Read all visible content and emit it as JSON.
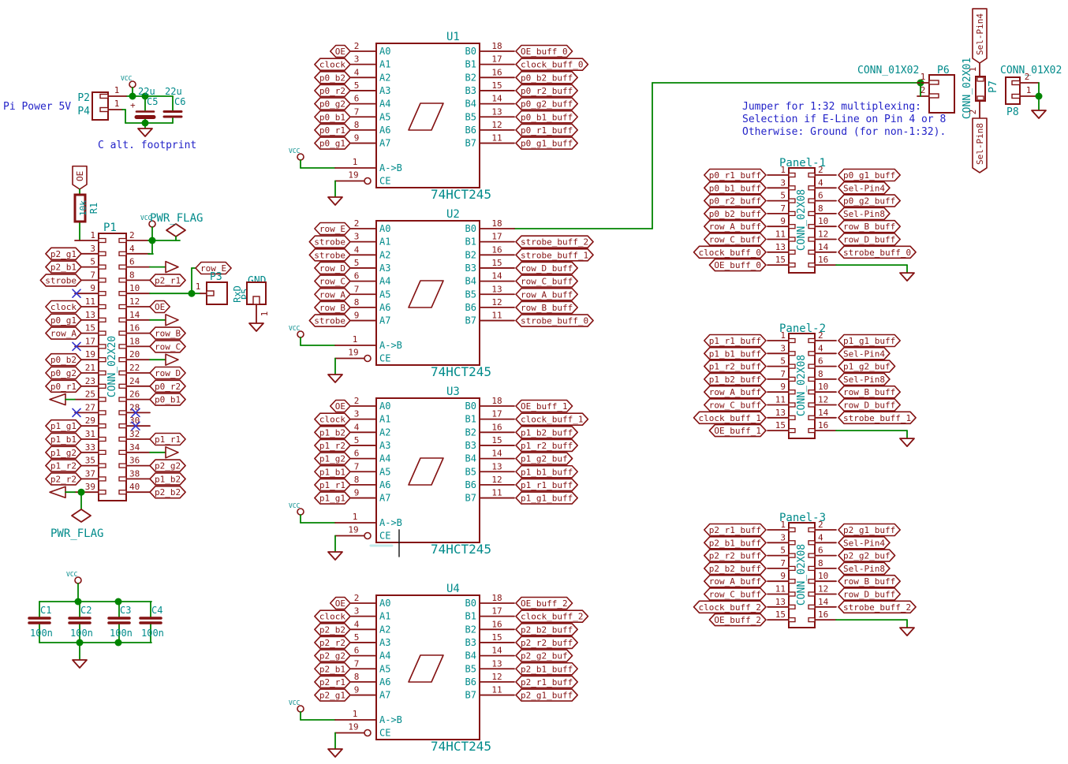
{
  "notes": {
    "pi_power": "Pi Power 5V",
    "c_alt": "C alt. footprint",
    "jumper": [
      "Jumper for 1:32 multiplexing:",
      "Selection if E-Line on Pin 4 or 8",
      "Otherwise: Ground (for non-1:32)."
    ]
  },
  "power": {
    "vcc": "VCC",
    "pwr_flag": "PWR_FLAG"
  },
  "pi_conn": {
    "p2": "P2",
    "p4": "P4",
    "pin": "1",
    "c5_ref": "C5",
    "c5_val": "22u",
    "c6_ref": "C6",
    "c6_val": "22u",
    "plus": "+"
  },
  "r1": {
    "ref": "R1",
    "value": "10k"
  },
  "oe_pullup_label": "OE",
  "p1": {
    "ref": "P1",
    "value": "CONN_02X20",
    "rows": [
      {
        "ln": "1",
        "lt": "wire",
        "rn": "2",
        "rt": "wire"
      },
      {
        "ln": "3",
        "ll": "p2_g1",
        "rn": "4",
        "rt": "wire"
      },
      {
        "ln": "5",
        "ll": "p2_b1",
        "rn": "6",
        "rt": "arrow"
      },
      {
        "ln": "7",
        "ll": "strobe",
        "rn": "8",
        "rl": "p2_r1"
      },
      {
        "ln": "9",
        "lt": "nc",
        "rn": "10",
        "rt": "wire"
      },
      {
        "ln": "11",
        "ll": "clock",
        "rn": "12",
        "rl": "OE"
      },
      {
        "ln": "13",
        "ll": "p0_g1",
        "rn": "14",
        "rt": "arrow"
      },
      {
        "ln": "15",
        "ll": "row_A",
        "rn": "16",
        "rl": "row_B"
      },
      {
        "ln": "17",
        "lt": "nc",
        "rn": "18",
        "rl": "row_C"
      },
      {
        "ln": "19",
        "ll": "p0_b2",
        "rn": "20",
        "rt": "arrow"
      },
      {
        "ln": "21",
        "ll": "p0_g2",
        "rn": "22",
        "rl": "row_D"
      },
      {
        "ln": "23",
        "ll": "p0_r1",
        "rn": "24",
        "rl": "p0_r2"
      },
      {
        "ln": "25",
        "lt": "arrow",
        "rn": "26",
        "rl": "p0_b1"
      },
      {
        "ln": "27",
        "lt": "nc",
        "rn": "28",
        "rt": "nc"
      },
      {
        "ln": "29",
        "ll": "p1_g1",
        "rn": "30",
        "rt": "nc"
      },
      {
        "ln": "31",
        "ll": "p1_b1",
        "rn": "32",
        "rl": "p1_r1"
      },
      {
        "ln": "33",
        "ll": "p1_g2",
        "rn": "34",
        "rt": "arrow"
      },
      {
        "ln": "35",
        "ll": "p1_r2",
        "rn": "36",
        "rl": "p2_g2"
      },
      {
        "ln": "37",
        "ll": "p2_r2",
        "rn": "38",
        "rl": "p1_b2"
      },
      {
        "ln": "39",
        "lt": "arrow",
        "rn": "40",
        "rl": "p2_b2"
      }
    ]
  },
  "p3_area": {
    "p3_ref": "P3",
    "p5_ref": "P5",
    "p5_val": "RxD",
    "gnd_ref_val": "GND",
    "pin": "1",
    "row_e": "row_E"
  },
  "ics": [
    {
      "ref": "U1",
      "value": "74HCT245",
      "left": [
        {
          "n": "2",
          "name": "A0",
          "label": "OE"
        },
        {
          "n": "3",
          "name": "A1",
          "label": "clock"
        },
        {
          "n": "4",
          "name": "A2",
          "label": "p0_b2"
        },
        {
          "n": "5",
          "name": "A3",
          "label": "p0_r2"
        },
        {
          "n": "6",
          "name": "A4",
          "label": "p0_g2"
        },
        {
          "n": "7",
          "name": "A5",
          "label": "p0_b1"
        },
        {
          "n": "8",
          "name": "A6",
          "label": "p0_r1"
        },
        {
          "n": "9",
          "name": "A7",
          "label": "p0_g1"
        }
      ],
      "right": [
        {
          "n": "18",
          "name": "B0",
          "label": "OE_buff_0"
        },
        {
          "n": "17",
          "name": "B1",
          "label": "clock_buff_0"
        },
        {
          "n": "16",
          "name": "B2",
          "label": "p0_b2_buff"
        },
        {
          "n": "15",
          "name": "B3",
          "label": "p0_r2_buff"
        },
        {
          "n": "14",
          "name": "B4",
          "label": "p0_g2_buff"
        },
        {
          "n": "13",
          "name": "B5",
          "label": "p0_b1_buff"
        },
        {
          "n": "12",
          "name": "B6",
          "label": "p0_r1_buff"
        },
        {
          "n": "11",
          "name": "B7",
          "label": "p0_g1_buff"
        }
      ],
      "ab": {
        "n": "1",
        "name": "A->B"
      },
      "ce": {
        "n": "19",
        "name": "CE"
      }
    },
    {
      "ref": "U2",
      "value": "74HCT245",
      "left": [
        {
          "n": "2",
          "name": "A0",
          "label": "row_E"
        },
        {
          "n": "3",
          "name": "A1",
          "label": "strobe"
        },
        {
          "n": "4",
          "name": "A2",
          "label": "strobe"
        },
        {
          "n": "5",
          "name": "A3",
          "label": "row_D"
        },
        {
          "n": "6",
          "name": "A4",
          "label": "row_C"
        },
        {
          "n": "7",
          "name": "A5",
          "label": "row_A"
        },
        {
          "n": "8",
          "name": "A6",
          "label": "row_B"
        },
        {
          "n": "9",
          "name": "A7",
          "label": "strobe"
        }
      ],
      "right": [
        {
          "n": "18",
          "name": "B0",
          "label": null
        },
        {
          "n": "17",
          "name": "B1",
          "label": "strobe_buff_2"
        },
        {
          "n": "16",
          "name": "B2",
          "label": "strobe_buff_1"
        },
        {
          "n": "15",
          "name": "B3",
          "label": "row_D_buff"
        },
        {
          "n": "14",
          "name": "B4",
          "label": "row_C_buff"
        },
        {
          "n": "13",
          "name": "B5",
          "label": "row_A_buff"
        },
        {
          "n": "12",
          "name": "B6",
          "label": "row_B_buff"
        },
        {
          "n": "11",
          "name": "B7",
          "label": "strobe_buff_0"
        }
      ],
      "ab": {
        "n": "1",
        "name": "A->B"
      },
      "ce": {
        "n": "19",
        "name": "CE"
      }
    },
    {
      "ref": "U3",
      "value": "74HCT245",
      "left": [
        {
          "n": "2",
          "name": "A0",
          "label": "OE"
        },
        {
          "n": "3",
          "name": "A1",
          "label": "clock"
        },
        {
          "n": "4",
          "name": "A2",
          "label": "p1_b2"
        },
        {
          "n": "5",
          "name": "A3",
          "label": "p1_r2"
        },
        {
          "n": "6",
          "name": "A4",
          "label": "p1_g2"
        },
        {
          "n": "7",
          "name": "A5",
          "label": "p1_b1"
        },
        {
          "n": "8",
          "name": "A6",
          "label": "p1_r1"
        },
        {
          "n": "9",
          "name": "A7",
          "label": "p1_g1"
        }
      ],
      "right": [
        {
          "n": "18",
          "name": "B0",
          "label": "OE_buff_1"
        },
        {
          "n": "17",
          "name": "B1",
          "label": "clock_buff_1"
        },
        {
          "n": "16",
          "name": "B2",
          "label": "p1_b2_buff"
        },
        {
          "n": "15",
          "name": "B3",
          "label": "p1_r2_buff"
        },
        {
          "n": "14",
          "name": "B4",
          "label": "p1_g2_buf"
        },
        {
          "n": "13",
          "name": "B5",
          "label": "p1_b1_buff"
        },
        {
          "n": "12",
          "name": "B6",
          "label": "p1_r1_buff"
        },
        {
          "n": "11",
          "name": "B7",
          "label": "p1_g1_buff"
        }
      ],
      "ab": {
        "n": "1",
        "name": "A->B"
      },
      "ce": {
        "n": "19",
        "name": "CE"
      }
    },
    {
      "ref": "U4",
      "value": "74HCT245",
      "left": [
        {
          "n": "2",
          "name": "A0",
          "label": "OE"
        },
        {
          "n": "3",
          "name": "A1",
          "label": "clock"
        },
        {
          "n": "4",
          "name": "A2",
          "label": "p2_b2"
        },
        {
          "n": "5",
          "name": "A3",
          "label": "p2_r2"
        },
        {
          "n": "6",
          "name": "A4",
          "label": "p2_g2"
        },
        {
          "n": "7",
          "name": "A5",
          "label": "p2_b1"
        },
        {
          "n": "8",
          "name": "A6",
          "label": "p2_r1"
        },
        {
          "n": "9",
          "name": "A7",
          "label": "p2_g1"
        }
      ],
      "right": [
        {
          "n": "18",
          "name": "B0",
          "label": "OE_buff_2"
        },
        {
          "n": "17",
          "name": "B1",
          "label": "clock_buff_2"
        },
        {
          "n": "16",
          "name": "B2",
          "label": "p2_b2_buff"
        },
        {
          "n": "15",
          "name": "B3",
          "label": "p2_r2_buff"
        },
        {
          "n": "14",
          "name": "B4",
          "label": "p2_g2_buf"
        },
        {
          "n": "13",
          "name": "B5",
          "label": "p2_b1_buff"
        },
        {
          "n": "12",
          "name": "B6",
          "label": "p2_r1_buff"
        },
        {
          "n": "11",
          "name": "B7",
          "label": "p2_g1_buff"
        }
      ],
      "ab": {
        "n": "1",
        "name": "A->B"
      },
      "ce": {
        "n": "19",
        "name": "CE"
      }
    }
  ],
  "panels": [
    {
      "ref": "Panel-1",
      "value": "CONN_02X08",
      "left": [
        {
          "n": "1",
          "label": "p0_r1_buff"
        },
        {
          "n": "3",
          "label": "p0_b1_buff"
        },
        {
          "n": "5",
          "label": "p0_r2_buff"
        },
        {
          "n": "7",
          "label": "p0_b2_buff"
        },
        {
          "n": "9",
          "label": "row_A_buff"
        },
        {
          "n": "11",
          "label": "row_C_buff"
        },
        {
          "n": "13",
          "label": "clock_buff_0"
        },
        {
          "n": "15",
          "label": "OE_buff_0"
        }
      ],
      "right": [
        {
          "n": "2",
          "label": "p0_g1_buff"
        },
        {
          "n": "4",
          "label": "Sel-Pin4"
        },
        {
          "n": "6",
          "label": "p0_g2_buff"
        },
        {
          "n": "8",
          "label": "Sel-Pin8"
        },
        {
          "n": "10",
          "label": "row_B_buff"
        },
        {
          "n": "12",
          "label": "row_D_buff"
        },
        {
          "n": "14",
          "label": "strobe_buff_0"
        },
        {
          "n": "16",
          "label": null
        }
      ]
    },
    {
      "ref": "Panel-2",
      "value": "CONN_02X08",
      "left": [
        {
          "n": "1",
          "label": "p1_r1_buff"
        },
        {
          "n": "3",
          "label": "p1_b1_buff"
        },
        {
          "n": "5",
          "label": "p1_r2_buff"
        },
        {
          "n": "7",
          "label": "p1_b2_buff"
        },
        {
          "n": "9",
          "label": "row_A_buff"
        },
        {
          "n": "11",
          "label": "row_C_buff"
        },
        {
          "n": "13",
          "label": "clock_buff_1"
        },
        {
          "n": "15",
          "label": "OE_buff_1"
        }
      ],
      "right": [
        {
          "n": "2",
          "label": "p1_g1_buff"
        },
        {
          "n": "4",
          "label": "Sel-Pin4"
        },
        {
          "n": "6",
          "label": "p1_g2_buf"
        },
        {
          "n": "8",
          "label": "Sel-Pin8"
        },
        {
          "n": "10",
          "label": "row_B_buff"
        },
        {
          "n": "12",
          "label": "row_D_buff"
        },
        {
          "n": "14",
          "label": "strobe_buff_1"
        },
        {
          "n": "16",
          "label": null
        }
      ]
    },
    {
      "ref": "Panel-3",
      "value": "CONN_02X08",
      "left": [
        {
          "n": "1",
          "label": "p2_r1_buff"
        },
        {
          "n": "3",
          "label": "p2_b1_buff"
        },
        {
          "n": "5",
          "label": "p2_r2_buff"
        },
        {
          "n": "7",
          "label": "p2_b2_buff"
        },
        {
          "n": "9",
          "label": "row_A_buff"
        },
        {
          "n": "11",
          "label": "row_C_buff"
        },
        {
          "n": "13",
          "label": "clock_buff_2"
        },
        {
          "n": "15",
          "label": "OE_buff_2"
        }
      ],
      "right": [
        {
          "n": "2",
          "label": "p2_g1_buff"
        },
        {
          "n": "4",
          "label": "Sel-Pin4"
        },
        {
          "n": "6",
          "label": "p2_g2_buf"
        },
        {
          "n": "8",
          "label": "Sel-Pin8"
        },
        {
          "n": "10",
          "label": "row_B_buff"
        },
        {
          "n": "12",
          "label": "row_D_buff"
        },
        {
          "n": "14",
          "label": "strobe_buff_2"
        },
        {
          "n": "16",
          "label": null
        }
      ]
    }
  ],
  "p6": {
    "ref": "P6",
    "value": "CONN_01X02",
    "pins": [
      "1",
      "2"
    ]
  },
  "p7": {
    "ref": "P7",
    "value": "CONN_02X01",
    "pin_top": "1",
    "pin_bottom": "2",
    "sel4": "Sel-Pin4",
    "sel8": "Sel-Pin8"
  },
  "p8": {
    "ref": "P8",
    "value": "CONN_01X02",
    "pin_top": "2",
    "pin_bottom": "1"
  },
  "bypass_caps": {
    "refs": [
      "C1",
      "C2",
      "C3",
      "C4"
    ],
    "value": "100n"
  },
  "colors": {
    "wire": "#008400",
    "part": "#841212",
    "field": "#008a8a",
    "note": "#2323c8",
    "noconnect": "#3434cc"
  }
}
